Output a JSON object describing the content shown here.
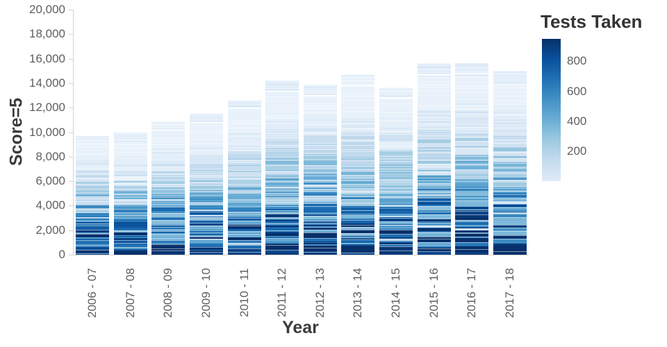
{
  "axes": {
    "y_title": "Score=5",
    "x_title": "Year",
    "y_tick_labels": [
      "0",
      "2,000",
      "4,000",
      "6,000",
      "8,000",
      "10,000",
      "12,000",
      "14,000",
      "16,000",
      "18,000",
      "20,000"
    ]
  },
  "legend": {
    "title": "Tests Taken",
    "tick_labels": [
      "200",
      "400",
      "600",
      "800"
    ],
    "tick_values": [
      200,
      400,
      600,
      800
    ],
    "value_max": 950
  },
  "chart_data": {
    "type": "bar",
    "stacked": true,
    "title": "",
    "xlabel": "Year",
    "ylabel": "Score=5",
    "color_field": "Tests Taken",
    "categories": [
      "2006 - 07",
      "2007 - 08",
      "2008 - 09",
      "2009 - 10",
      "2010 - 11",
      "2011 - 12",
      "2012 - 13",
      "2013 - 14",
      "2014 - 15",
      "2015 - 16",
      "2016 - 17",
      "2017 - 18"
    ],
    "totals": [
      9700,
      10000,
      10900,
      11500,
      12600,
      14200,
      13900,
      14650,
      13650,
      15650,
      15650,
      15000
    ],
    "ylim": [
      0,
      20000
    ],
    "ytick_interval": 2000,
    "legend_range": [
      0,
      950
    ],
    "legend_ticks": [
      200,
      400,
      600,
      800
    ],
    "color_ramp": [
      "#f7fbff",
      "#deebf7",
      "#c6dbef",
      "#9ecae1",
      "#6baed6",
      "#4292c6",
      "#2171b5",
      "#08519c",
      "#08306b"
    ],
    "grid": false,
    "legend_position": "right"
  }
}
